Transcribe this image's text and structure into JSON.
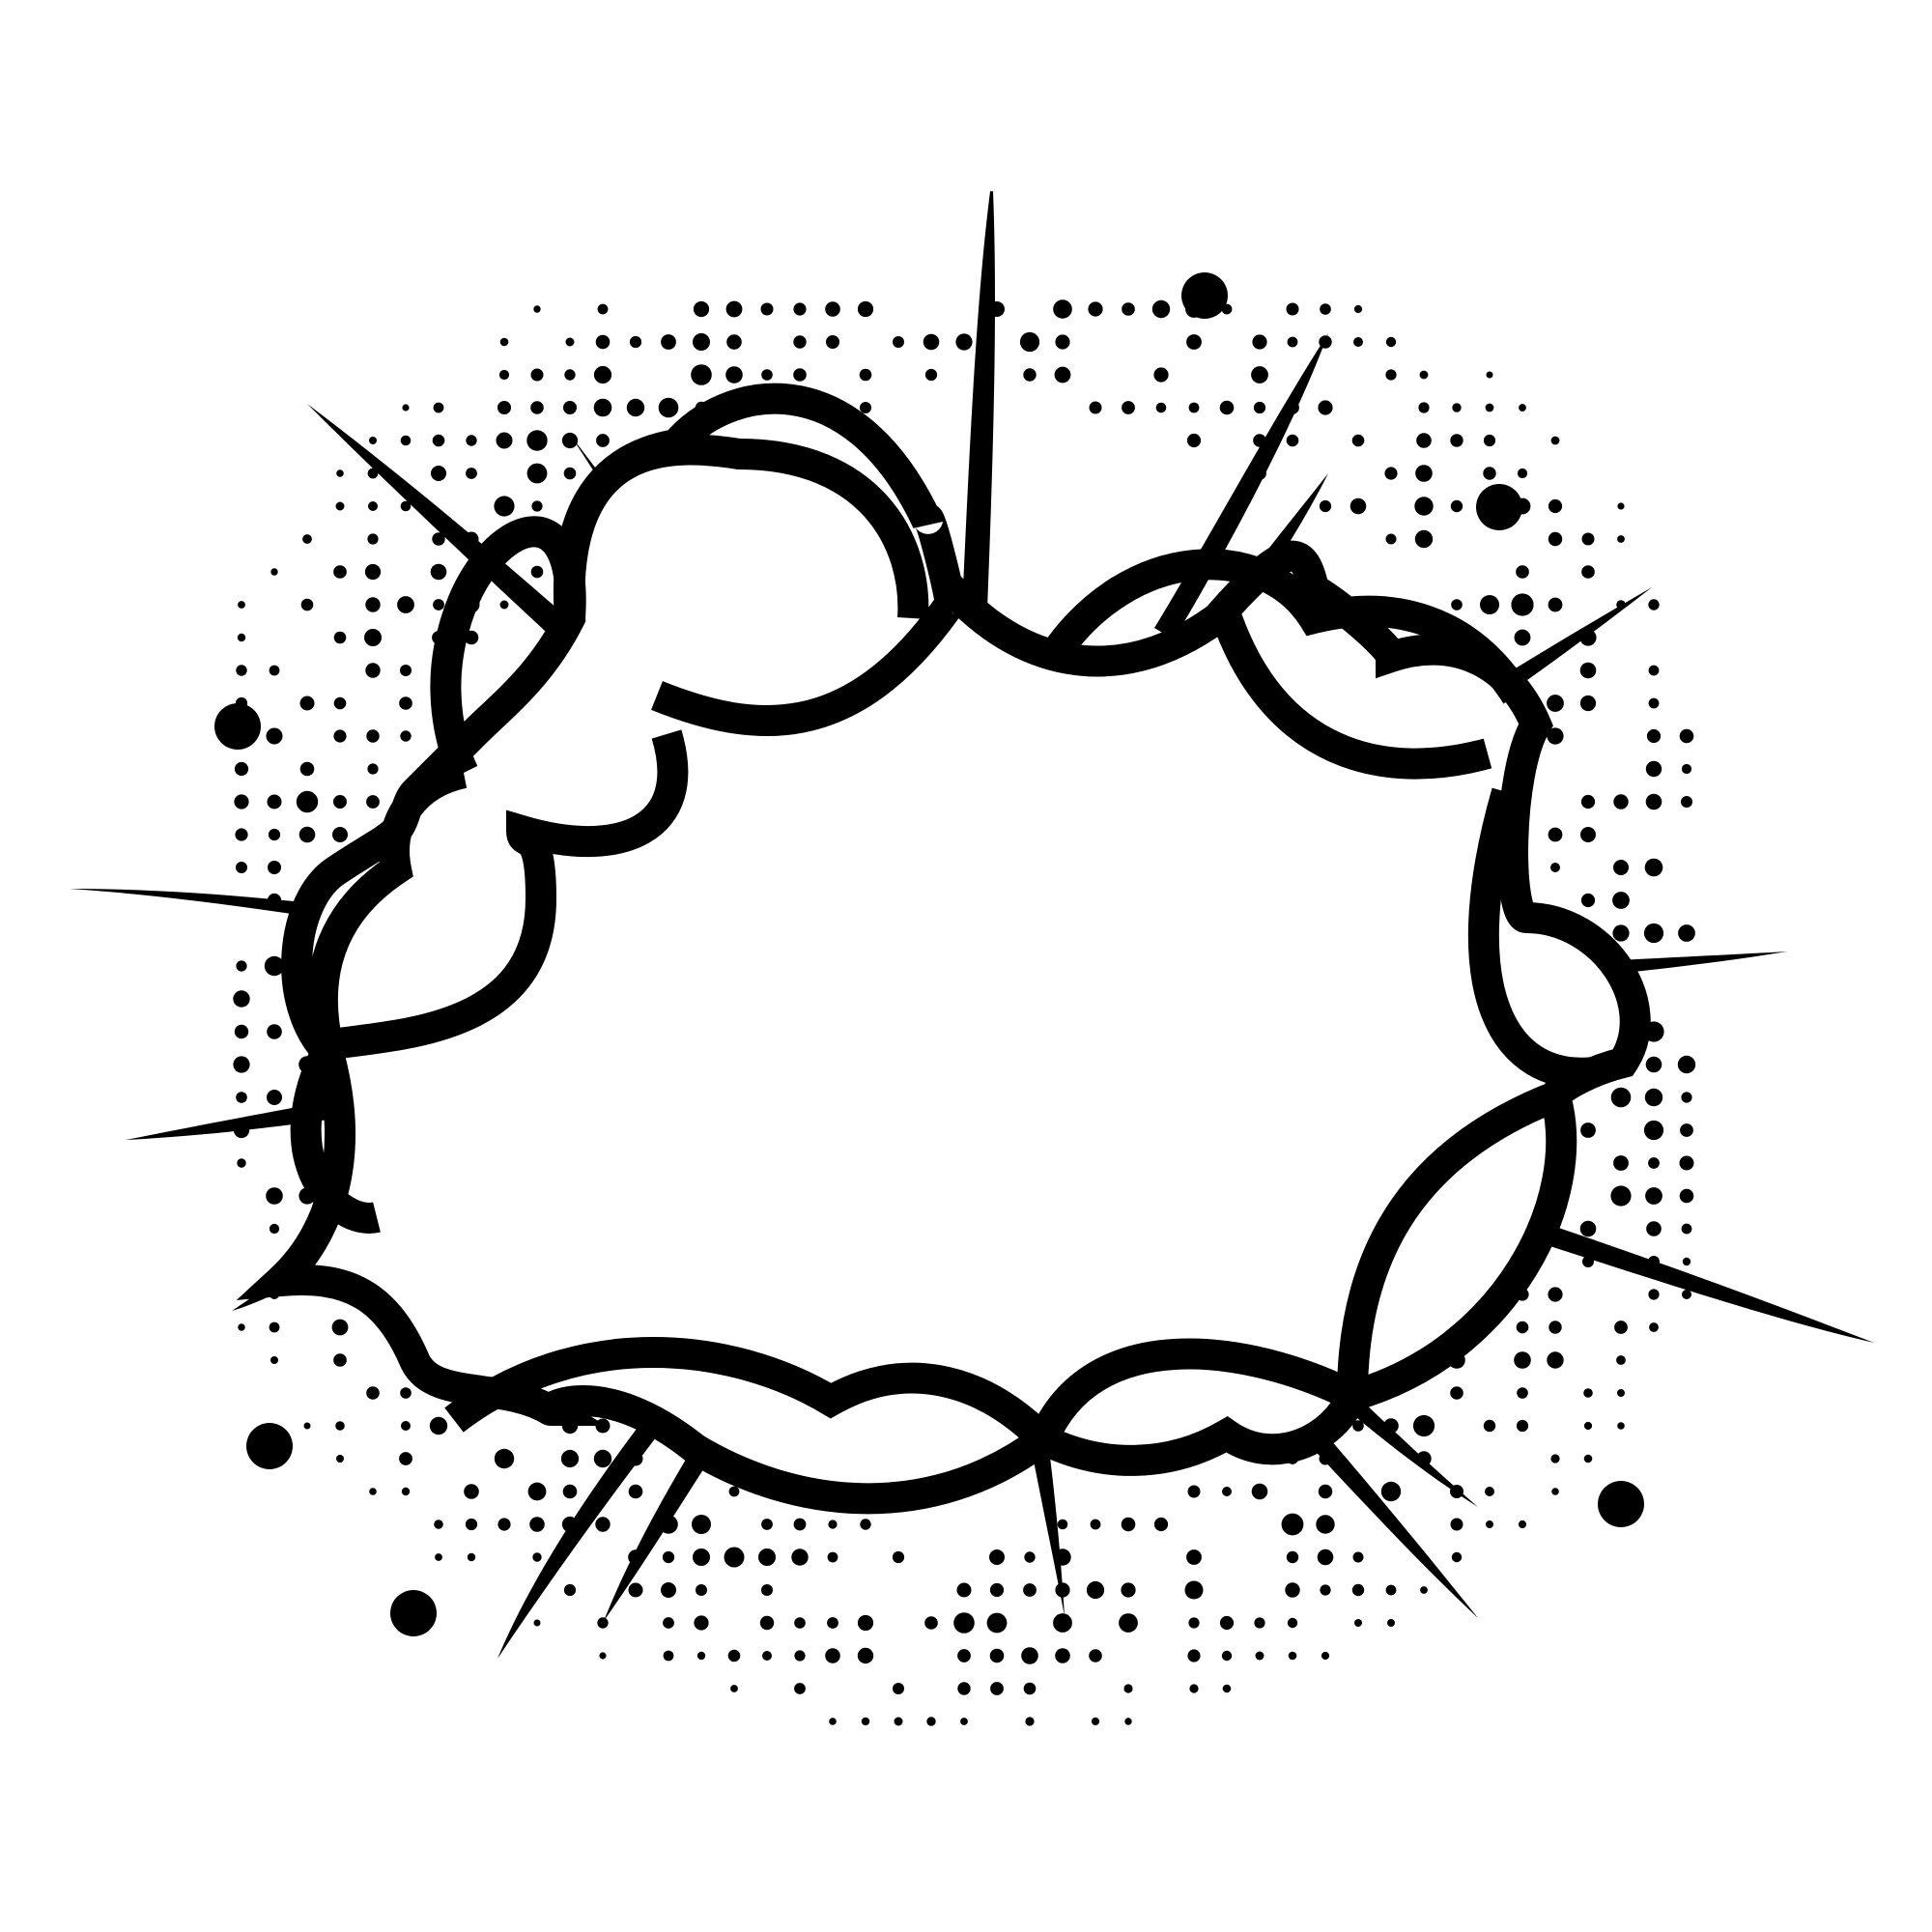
{
  "illustration": {
    "kind": "comic-explosion-speech-bubble",
    "bubble_text": "",
    "colors": {
      "background": "#ffffff",
      "ink": "#000000"
    }
  }
}
